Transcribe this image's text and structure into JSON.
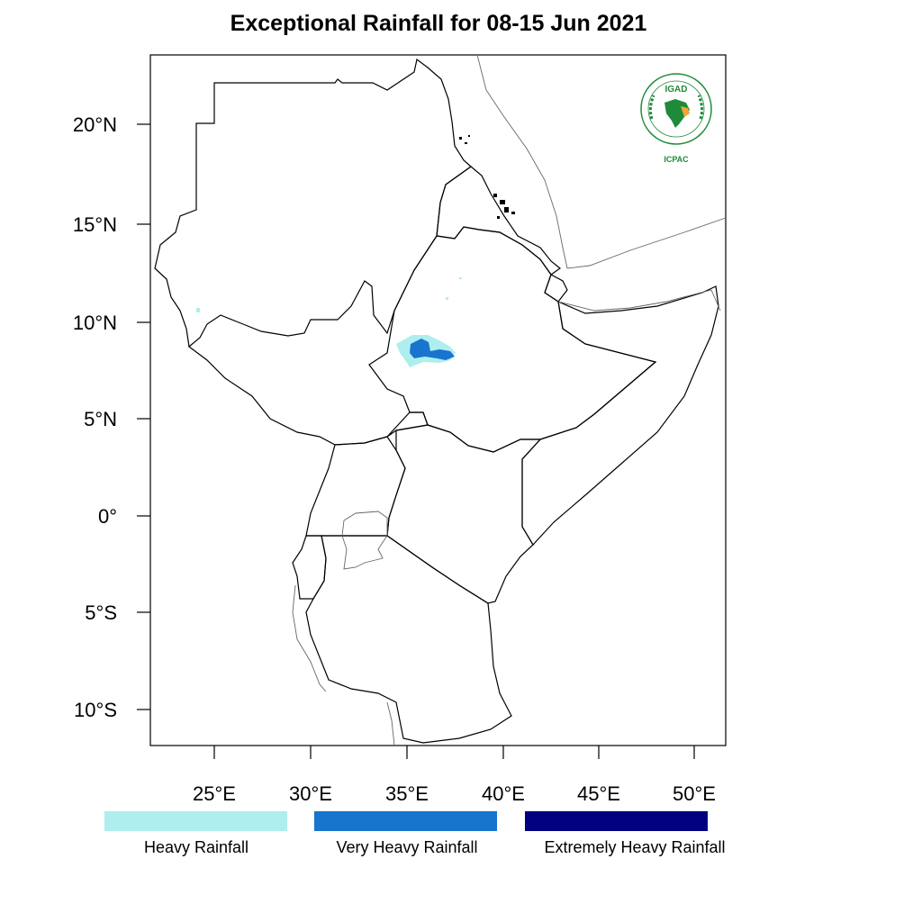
{
  "title": "Exceptional Rainfall for 08-15 Jun 2021",
  "axes": {
    "lon_ticks": [
      "25°E",
      "30°E",
      "35°E",
      "40°E",
      "45°E",
      "50°E"
    ],
    "lat_ticks": [
      "20°N",
      "15°N",
      "10°N",
      "5°N",
      "0°",
      "5°S",
      "10°S"
    ],
    "lon_range": [
      21.7,
      51.6
    ],
    "lat_range": [
      -11.9,
      23.6
    ]
  },
  "legend": [
    {
      "label": "Heavy Rainfall",
      "color": "#aeeeee"
    },
    {
      "label": "Very Heavy Rainfall",
      "color": "#1874cd"
    },
    {
      "label": "Extremely Heavy Rainfall",
      "color": "#000080"
    }
  ],
  "logo": {
    "top_text": "IGAD",
    "bottom_text": "ICPAC",
    "green": "#1f8a3a",
    "orange": "#f0a830"
  }
}
